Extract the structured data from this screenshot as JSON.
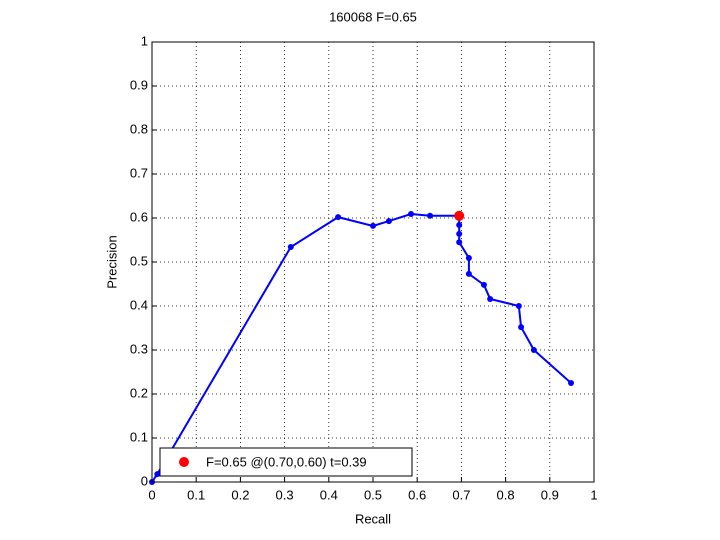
{
  "chart_data": {
    "type": "line",
    "title": "160068 F=0.65",
    "x_label": "Recall",
    "y_label": "Precision",
    "xlim": [
      0,
      1
    ],
    "ylim": [
      0,
      1
    ],
    "xticks": [
      0,
      0.1,
      0.2,
      0.3,
      0.4,
      0.5,
      0.6,
      0.7,
      0.8,
      0.9,
      1
    ],
    "yticks": [
      0,
      0.1,
      0.2,
      0.3,
      0.4,
      0.5,
      0.6,
      0.7,
      0.8,
      0.9,
      1
    ],
    "grid": true,
    "legend_position": "lower left",
    "series": [
      {
        "color": "#0000ff",
        "marker_size": 3,
        "x": [
          0,
          0.012,
          0.314,
          0.421,
          0.5,
          0.536,
          0.586,
          0.629,
          0.695,
          0.695,
          0.695,
          0.695,
          0.717,
          0.717,
          0.751,
          0.765,
          0.83,
          0.835,
          0.864,
          0.948
        ],
        "values": [
          0,
          0.018,
          0.534,
          0.602,
          0.582,
          0.593,
          0.609,
          0.605,
          0.605,
          0.584,
          0.564,
          0.545,
          0.509,
          0.473,
          0.448,
          0.416,
          0.4,
          0.352,
          0.3,
          0.225
        ]
      },
      {
        "name": "F=0.65 @(0.70,0.60) t=0.39",
        "color": "#ff0000",
        "marker_size": 5,
        "x": [
          0.695
        ],
        "values": [
          0.605
        ]
      }
    ]
  }
}
